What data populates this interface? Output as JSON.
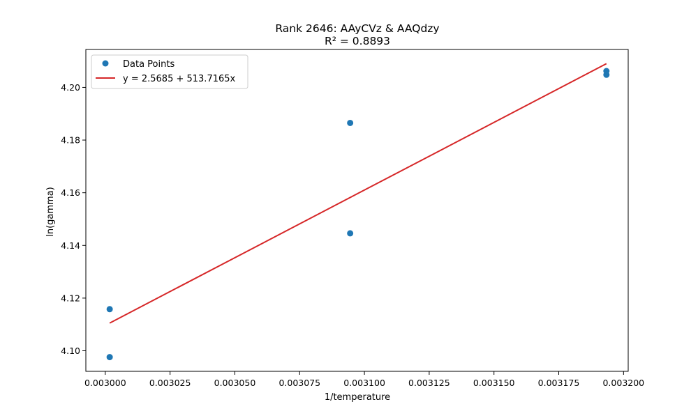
{
  "chart_data": {
    "type": "scatter",
    "title": "Rank 2646: AAyCVz & AAQdzy",
    "subtitle": "R² = 0.8893",
    "xlabel": "1/temperature",
    "ylabel": "ln(gamma)",
    "xlim": [
      0.0029925,
      0.0032018
    ],
    "ylim": [
      4.0922,
      4.2144
    ],
    "x_ticks": [
      0.003,
      0.003025,
      0.00305,
      0.003075,
      0.0031,
      0.003125,
      0.00315,
      0.003175,
      0.0032
    ],
    "x_tick_labels": [
      "0.003000",
      "0.003025",
      "0.003050",
      "0.003075",
      "0.003100",
      "0.003125",
      "0.003150",
      "0.003175",
      "0.003200"
    ],
    "y_ticks": [
      4.1,
      4.12,
      4.14,
      4.16,
      4.18,
      4.2
    ],
    "y_tick_labels": [
      "4.10",
      "4.12",
      "4.14",
      "4.16",
      "4.18",
      "4.20"
    ],
    "grid": false,
    "legend_position": "top-left",
    "series": [
      {
        "name": "Data Points",
        "kind": "scatter",
        "color": "#1f77b4",
        "points": [
          {
            "x": 0.0030017,
            "y": 4.1158
          },
          {
            "x": 0.0030017,
            "y": 4.0976
          },
          {
            "x": 0.0030945,
            "y": 4.1865
          },
          {
            "x": 0.0030945,
            "y": 4.1446
          },
          {
            "x": 0.0031934,
            "y": 4.2062
          },
          {
            "x": 0.0031934,
            "y": 4.2048
          }
        ]
      },
      {
        "name": "y = 2.5685 + 513.7165x",
        "kind": "line",
        "color": "#d62728",
        "intercept": 2.5685,
        "slope": 513.7165,
        "x_range": [
          0.0030017,
          0.0031934
        ]
      }
    ]
  }
}
